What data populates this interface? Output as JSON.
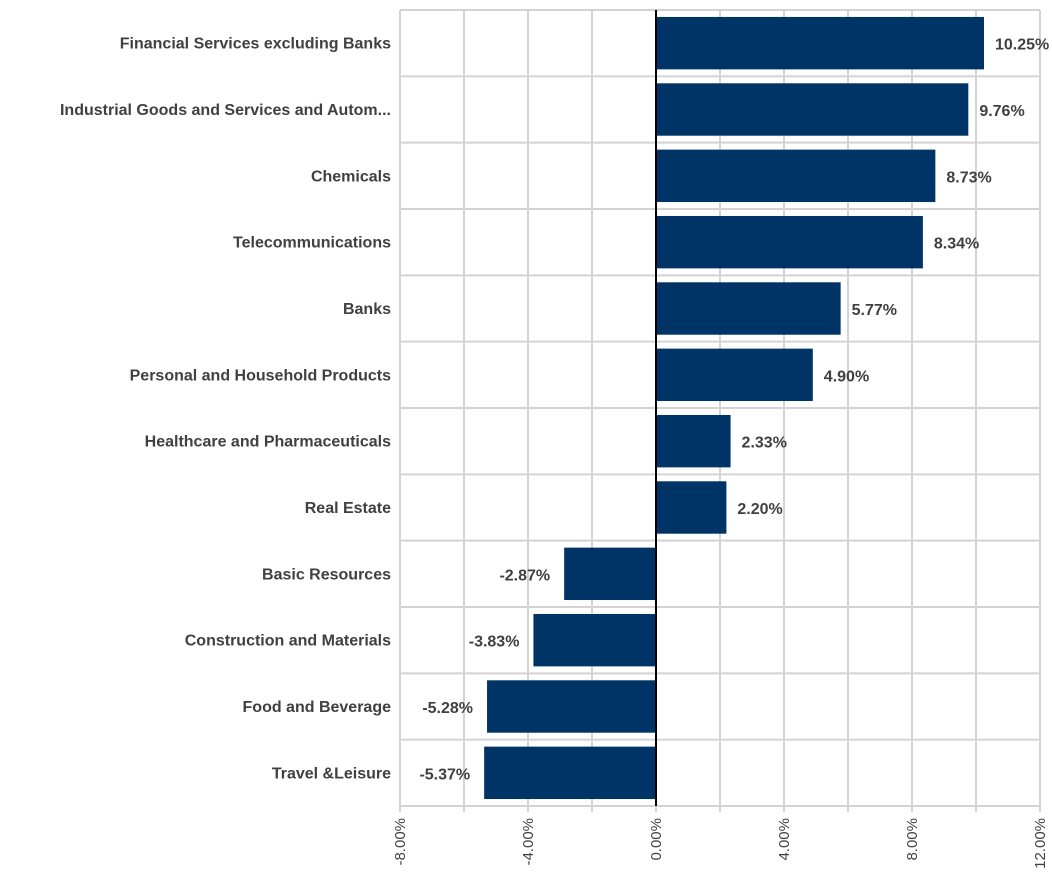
{
  "chart_data": {
    "type": "bar",
    "orientation": "horizontal",
    "categories": [
      "Financial Services excluding Banks",
      "Industrial Goods and Services and Autom...",
      "Chemicals",
      "Telecommunications",
      "Banks",
      "Personal and Household Products",
      "Healthcare and Pharmaceuticals",
      "Real Estate",
      "Basic Resources",
      "Construction and Materials",
      "Food and Beverage",
      "Travel &Leisure"
    ],
    "values": [
      10.25,
      9.76,
      8.73,
      8.34,
      5.77,
      4.9,
      2.33,
      2.2,
      -2.87,
      -3.83,
      -5.28,
      -5.37
    ],
    "value_labels": [
      "10.25%",
      "9.76%",
      "8.73%",
      "8.34%",
      "5.77%",
      "4.90%",
      "2.33%",
      "2.20%",
      "-2.87%",
      "-3.83%",
      "-5.28%",
      "-5.37%"
    ],
    "xlim": [
      -8,
      12
    ],
    "xticks": [
      -8,
      -4,
      0,
      4,
      8,
      12
    ],
    "xtick_labels": [
      "-8.00%",
      "-4.00%",
      "0.00%",
      "4.00%",
      "8.00%",
      "12.00%"
    ],
    "title": "",
    "xlabel": "",
    "ylabel": "",
    "grid": true,
    "legend": "none",
    "colors": {
      "bar": "#003366",
      "grid": "#d3d3d3",
      "zero_line": "#000000",
      "text": "#404040"
    }
  }
}
